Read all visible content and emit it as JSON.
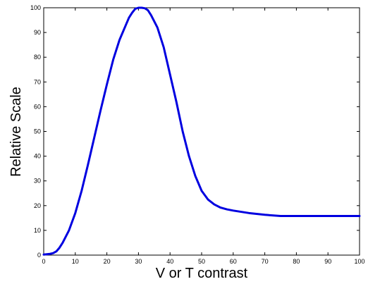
{
  "chart_data": {
    "type": "line",
    "title": "",
    "xlabel": "V or T contrast",
    "ylabel": "Relative Scale",
    "xlim": [
      0,
      100
    ],
    "ylim": [
      0,
      100
    ],
    "xticks": [
      "0",
      "10",
      "20",
      "30",
      "40",
      "50",
      "60",
      "70",
      "80",
      "90",
      "100"
    ],
    "yticks": [
      "0",
      "10",
      "20",
      "30",
      "40",
      "50",
      "60",
      "70",
      "80",
      "90",
      "100"
    ],
    "grid": false,
    "legend": "none",
    "series": [
      {
        "color": "#0000e0",
        "x": [
          0,
          2,
          3,
          4,
          5,
          6,
          7,
          8,
          10,
          12,
          14,
          16,
          18,
          20,
          22,
          24,
          26,
          27,
          28,
          29,
          30,
          31,
          32,
          33,
          34,
          36,
          38,
          40,
          42,
          44,
          46,
          48,
          50,
          52,
          54,
          56,
          58,
          60,
          65,
          70,
          75,
          80,
          90,
          100
        ],
        "y": [
          0.2,
          0.5,
          0.8,
          1.5,
          3,
          5,
          7.5,
          10,
          17,
          26,
          36.5,
          47.5,
          58.5,
          69,
          79,
          87,
          93,
          96,
          98,
          99.6,
          100,
          100,
          99.8,
          99,
          97,
          92,
          84,
          73,
          62,
          50,
          40,
          32,
          26,
          22.5,
          20.5,
          19.2,
          18.5,
          18,
          17,
          16.3,
          15.8,
          15.8,
          15.8,
          15.8
        ]
      }
    ]
  }
}
